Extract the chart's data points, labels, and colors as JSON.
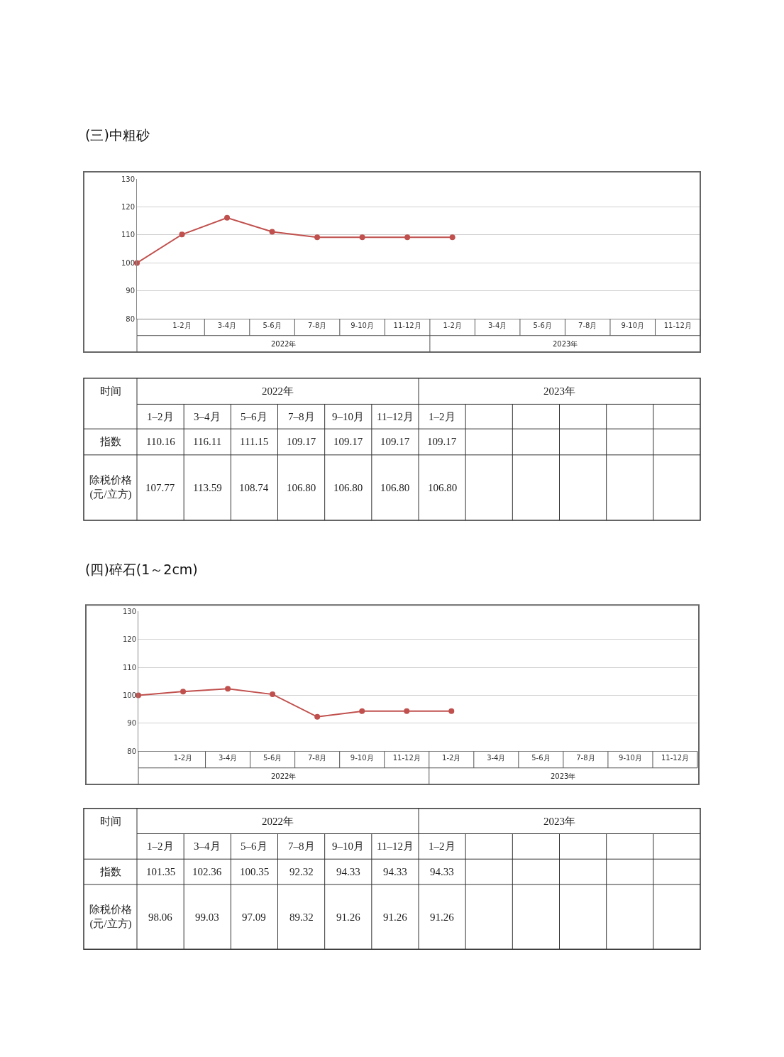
{
  "chart_data": [
    {
      "type": "line",
      "title": "(三)中粗砂",
      "categories": [
        null,
        "1-2月",
        "3-4月",
        "5-6月",
        "7-8月",
        "9-10月",
        "11-12月",
        "1-2月",
        "3-4月",
        "5-6月",
        "7-8月",
        "9-10月",
        "11-12月"
      ],
      "ylim": [
        80,
        130
      ],
      "yticks": [
        80,
        90,
        100,
        110,
        120,
        130
      ],
      "grid": "y",
      "marker": "circle",
      "line_style": "solid",
      "annotations": [
        "2022年",
        "2023年"
      ],
      "series": [
        {
          "color": "#c0504d",
          "values": [
            100,
            110.16,
            116.11,
            111.15,
            109.17,
            109.17,
            109.17,
            109.17,
            null,
            null,
            null,
            null,
            null
          ]
        }
      ]
    },
    {
      "type": "other",
      "xlabel": "时间",
      "annotations": [
        "2022年",
        "2023年"
      ],
      "categories": [
        "1–2月",
        "3–4月",
        "5–6月",
        "7–8月",
        "9–10月",
        "11–12月",
        "1–2月",
        null,
        null,
        null,
        null,
        null
      ],
      "series": [
        {
          "name": "指数",
          "values": [
            110.16,
            116.11,
            111.15,
            109.17,
            109.17,
            109.17,
            109.17,
            null,
            null,
            null,
            null,
            null
          ],
          "value_labels": [
            "110.16",
            "116.11",
            "111.15",
            "109.17",
            "109.17",
            "109.17",
            "109.17",
            null,
            null,
            null,
            null,
            null
          ]
        },
        {
          "name": "除税价格(元/立方)",
          "values": [
            107.77,
            113.59,
            108.74,
            106.8,
            106.8,
            106.8,
            106.8,
            null,
            null,
            null,
            null,
            null
          ],
          "value_labels": [
            "107.77",
            "113.59",
            "108.74",
            "106.80",
            "106.80",
            "106.80",
            "106.80",
            null,
            null,
            null,
            null,
            null
          ]
        }
      ]
    },
    {
      "type": "line",
      "title": "(四)碎石(1～2cm)",
      "categories": [
        null,
        "1-2月",
        "3-4月",
        "5-6月",
        "7-8月",
        "9-10月",
        "11-12月",
        "1-2月",
        "3-4月",
        "5-6月",
        "7-8月",
        "9-10月",
        "11-12月"
      ],
      "ylim": [
        80,
        130
      ],
      "yticks": [
        80,
        90,
        100,
        110,
        120,
        130
      ],
      "grid": "y",
      "marker": "circle",
      "line_style": "solid",
      "annotations": [
        "2022年",
        "2023年"
      ],
      "series": [
        {
          "color": "#c0504d",
          "values": [
            100,
            101.35,
            102.36,
            100.35,
            92.32,
            94.33,
            94.33,
            94.33,
            null,
            null,
            null,
            null,
            null
          ]
        }
      ]
    },
    {
      "type": "other",
      "xlabel": "时间",
      "annotations": [
        "2022年",
        "2023年"
      ],
      "categories": [
        "1–2月",
        "3–4月",
        "5–6月",
        "7–8月",
        "9–10月",
        "11–12月",
        "1–2月",
        null,
        null,
        null,
        null,
        null
      ],
      "series": [
        {
          "name": "指数",
          "values": [
            101.35,
            102.36,
            100.35,
            92.32,
            94.33,
            94.33,
            94.33,
            null,
            null,
            null,
            null,
            null
          ],
          "value_labels": [
            "101.35",
            "102.36",
            "100.35",
            "92.32",
            "94.33",
            "94.33",
            "94.33",
            null,
            null,
            null,
            null,
            null
          ]
        },
        {
          "name": "除税价格(元/立方)",
          "values": [
            98.06,
            99.03,
            97.09,
            89.32,
            91.26,
            91.26,
            91.26,
            null,
            null,
            null,
            null,
            null
          ],
          "value_labels": [
            "98.06",
            "99.03",
            "97.09",
            "89.32",
            "91.26",
            "91.26",
            "91.26",
            null,
            null,
            null,
            null,
            null
          ]
        }
      ]
    }
  ]
}
